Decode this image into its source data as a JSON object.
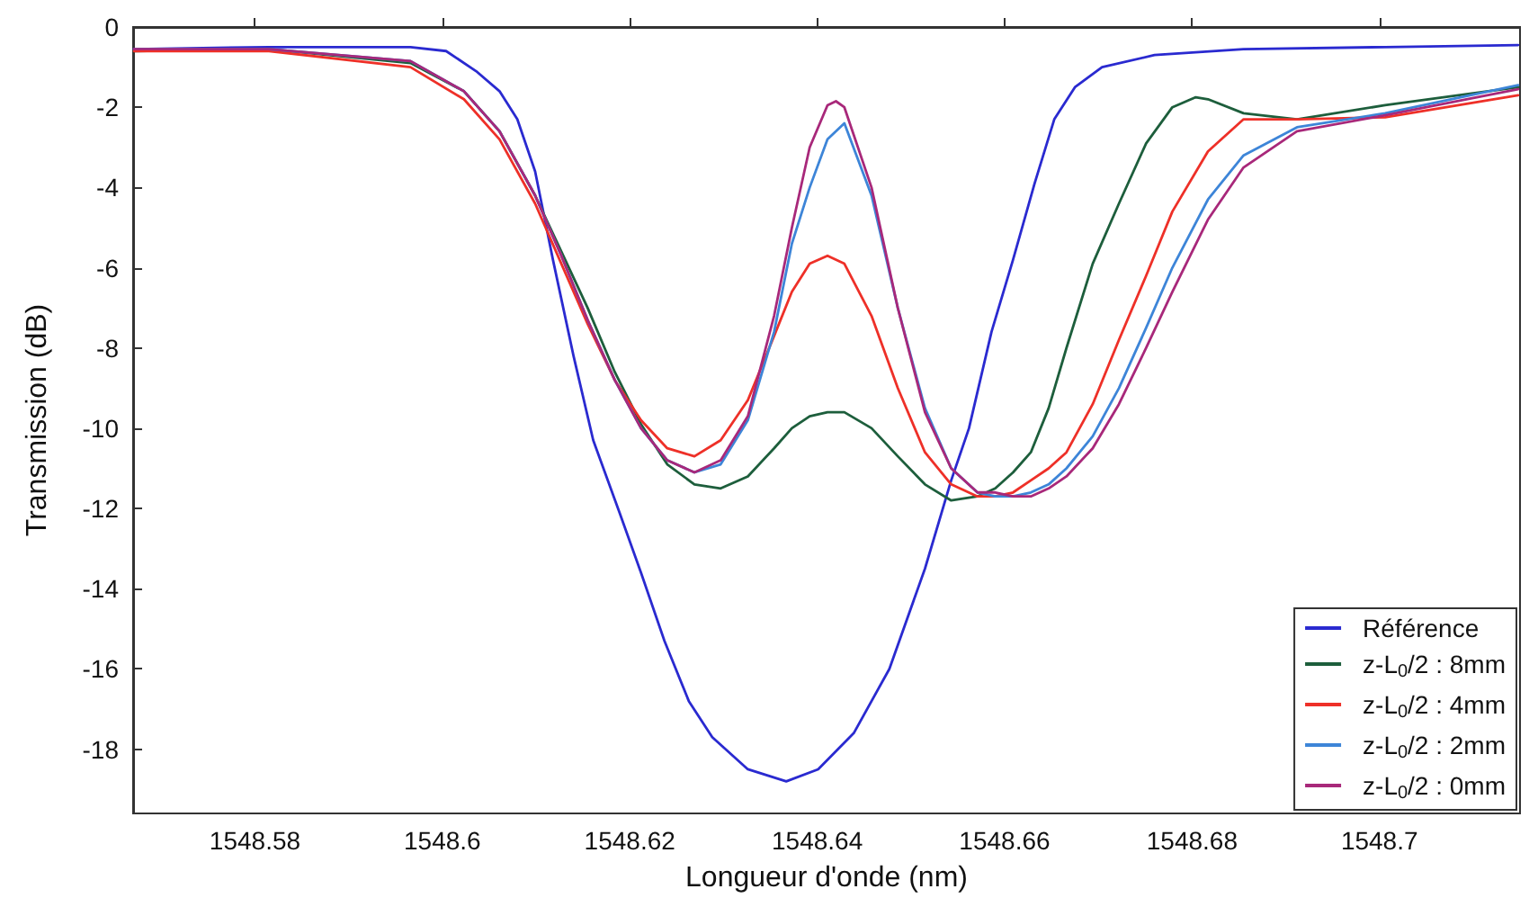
{
  "chart_data": {
    "type": "line",
    "xlabel": "Longueur d'onde (nm)",
    "ylabel": "Transmission (dB)",
    "xlim": [
      1548.567,
      1548.715
    ],
    "xticks": [
      1548.58,
      1548.6,
      1548.62,
      1548.64,
      1548.66,
      1548.68,
      1548.7
    ],
    "ylim": [
      -19.6,
      0
    ],
    "yticks": [
      0,
      -2,
      -4,
      -6,
      -8,
      -10,
      -12,
      -14,
      -16,
      -18
    ],
    "grid": false,
    "legend": "bottom right",
    "marker": "none",
    "line_style": "solid",
    "series": [
      {
        "name": "Référence",
        "color": "#2a2ad0",
        "x": [
          1548.5671,
          1548.5815,
          1548.5966,
          1548.6004,
          1548.6036,
          1548.6061,
          1548.608,
          1548.6099,
          1548.6118,
          1548.614,
          1548.6161,
          1548.6189,
          1548.6212,
          1548.6237,
          1548.6263,
          1548.6288,
          1548.6326,
          1548.6367,
          1548.6401,
          1548.6439,
          1548.6477,
          1548.6515,
          1548.6543,
          1548.6562,
          1548.6586,
          1548.6609,
          1548.6632,
          1548.6653,
          1548.6675,
          1548.6704,
          1548.676,
          1548.6855,
          1548.7006,
          1548.7148
        ],
        "values": [
          -0.55,
          -0.5,
          -0.5,
          -0.6,
          -1.1,
          -1.6,
          -2.3,
          -3.6,
          -5.8,
          -8.2,
          -10.3,
          -12.1,
          -13.6,
          -15.3,
          -16.8,
          -17.7,
          -18.5,
          -18.8,
          -18.5,
          -17.6,
          -16.0,
          -13.5,
          -11.3,
          -10.0,
          -7.6,
          -5.8,
          -3.9,
          -2.3,
          -1.5,
          -1.0,
          -0.7,
          -0.55,
          -0.5,
          -0.45
        ]
      },
      {
        "name": "z-L$_{0}$/2 : 8mm",
        "color": "#1d5e3c",
        "x": [
          1548.5671,
          1548.5815,
          1548.5966,
          1548.6023,
          1548.6061,
          1548.6099,
          1548.6127,
          1548.6155,
          1548.6184,
          1548.6212,
          1548.624,
          1548.6269,
          1548.6297,
          1548.6326,
          1548.6354,
          1548.6373,
          1548.6392,
          1548.6411,
          1548.6429,
          1548.6458,
          1548.6486,
          1548.6515,
          1548.6543,
          1548.6571,
          1548.659,
          1548.6609,
          1548.6628,
          1548.6647,
          1548.6666,
          1548.6694,
          1548.6722,
          1548.6751,
          1548.6779,
          1548.6804,
          1548.6817,
          1548.6855,
          1548.6912,
          1548.7006,
          1548.7148
        ],
        "values": [
          -0.6,
          -0.55,
          -0.9,
          -1.6,
          -2.6,
          -4.2,
          -5.6,
          -7.0,
          -8.6,
          -9.9,
          -10.9,
          -11.4,
          -11.5,
          -11.2,
          -10.5,
          -10.0,
          -9.7,
          -9.6,
          -9.6,
          -10.0,
          -10.7,
          -11.4,
          -11.8,
          -11.7,
          -11.5,
          -11.1,
          -10.6,
          -9.5,
          -8.0,
          -5.9,
          -4.4,
          -2.9,
          -2.0,
          -1.75,
          -1.8,
          -2.15,
          -2.3,
          -1.95,
          -1.5
        ]
      },
      {
        "name": "z-L$_{0}$/2 : 4mm",
        "color": "#ee3028",
        "x": [
          1548.5671,
          1548.5815,
          1548.5966,
          1548.6023,
          1548.6061,
          1548.6099,
          1548.6127,
          1548.6155,
          1548.6184,
          1548.6212,
          1548.624,
          1548.6269,
          1548.6297,
          1548.6326,
          1548.6354,
          1548.6373,
          1548.6392,
          1548.6411,
          1548.6429,
          1548.6458,
          1548.6486,
          1548.6515,
          1548.6543,
          1548.6571,
          1548.659,
          1548.6609,
          1548.6628,
          1548.6647,
          1548.6666,
          1548.6694,
          1548.6722,
          1548.6751,
          1548.6779,
          1548.6817,
          1548.6855,
          1548.6912,
          1548.7006,
          1548.7148
        ],
        "values": [
          -0.6,
          -0.6,
          -1.0,
          -1.8,
          -2.8,
          -4.4,
          -5.9,
          -7.4,
          -8.8,
          -9.8,
          -10.5,
          -10.7,
          -10.3,
          -9.3,
          -7.7,
          -6.6,
          -5.9,
          -5.7,
          -5.9,
          -7.2,
          -9.0,
          -10.6,
          -11.4,
          -11.7,
          -11.7,
          -11.6,
          -11.3,
          -11.0,
          -10.6,
          -9.4,
          -7.8,
          -6.2,
          -4.6,
          -3.1,
          -2.3,
          -2.3,
          -2.25,
          -1.7
        ]
      },
      {
        "name": "z-L$_{0}$/2 : 2mm",
        "color": "#3d85d8",
        "x": [
          1548.5671,
          1548.5815,
          1548.5966,
          1548.6023,
          1548.6061,
          1548.6099,
          1548.6127,
          1548.6155,
          1548.6184,
          1548.6212,
          1548.624,
          1548.6269,
          1548.6297,
          1548.6326,
          1548.6354,
          1548.6373,
          1548.6392,
          1548.6411,
          1548.6429,
          1548.6458,
          1548.6486,
          1548.6515,
          1548.6543,
          1548.6571,
          1548.659,
          1548.6609,
          1548.6628,
          1548.6647,
          1548.6666,
          1548.6694,
          1548.6722,
          1548.6751,
          1548.6779,
          1548.6817,
          1548.6855,
          1548.6912,
          1548.7006,
          1548.7148
        ],
        "values": [
          -0.55,
          -0.55,
          -0.85,
          -1.6,
          -2.6,
          -4.2,
          -5.7,
          -7.3,
          -8.8,
          -10.0,
          -10.8,
          -11.1,
          -10.9,
          -9.8,
          -7.6,
          -5.4,
          -4.0,
          -2.8,
          -2.4,
          -4.2,
          -7.0,
          -9.5,
          -11.0,
          -11.6,
          -11.7,
          -11.7,
          -11.6,
          -11.4,
          -11.0,
          -10.2,
          -9.0,
          -7.5,
          -6.0,
          -4.3,
          -3.2,
          -2.5,
          -2.15,
          -1.45
        ]
      },
      {
        "name": "z-L$_{0}$/2 : 0mm",
        "color": "#a8287a",
        "x": [
          1548.5671,
          1548.5815,
          1548.5966,
          1548.6023,
          1548.6061,
          1548.6099,
          1548.6127,
          1548.6155,
          1548.6184,
          1548.6212,
          1548.624,
          1548.6269,
          1548.6297,
          1548.6326,
          1548.6354,
          1548.6373,
          1548.6392,
          1548.6411,
          1548.642,
          1548.6429,
          1548.6458,
          1548.6486,
          1548.6515,
          1548.6543,
          1548.6571,
          1548.659,
          1548.6609,
          1548.6628,
          1548.6647,
          1548.6666,
          1548.6694,
          1548.6722,
          1548.6751,
          1548.6779,
          1548.6817,
          1548.6855,
          1548.6912,
          1548.7006,
          1548.7148
        ],
        "values": [
          -0.55,
          -0.55,
          -0.85,
          -1.6,
          -2.6,
          -4.2,
          -5.7,
          -7.3,
          -8.8,
          -10.0,
          -10.8,
          -11.1,
          -10.8,
          -9.7,
          -7.2,
          -5.0,
          -3.0,
          -1.95,
          -1.85,
          -2.0,
          -4.0,
          -7.0,
          -9.6,
          -11.0,
          -11.6,
          -11.6,
          -11.7,
          -11.7,
          -11.5,
          -11.2,
          -10.5,
          -9.4,
          -8.0,
          -6.6,
          -4.8,
          -3.5,
          -2.6,
          -2.2,
          -1.55
        ]
      }
    ]
  }
}
